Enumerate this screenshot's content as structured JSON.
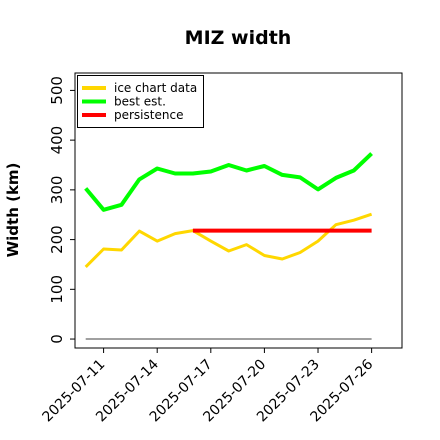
{
  "chart_data": {
    "type": "line",
    "title": "MIZ width",
    "xlabel": "",
    "ylabel": "Width (km)",
    "x": [
      "2025-07-10",
      "2025-07-11",
      "2025-07-12",
      "2025-07-13",
      "2025-07-14",
      "2025-07-15",
      "2025-07-16",
      "2025-07-17",
      "2025-07-18",
      "2025-07-19",
      "2025-07-20",
      "2025-07-21",
      "2025-07-22",
      "2025-07-23",
      "2025-07-24",
      "2025-07-25",
      "2025-07-26"
    ],
    "xticks": [
      "2025-07-11",
      "2025-07-14",
      "2025-07-17",
      "2025-07-20",
      "2025-07-23",
      "2025-07-26"
    ],
    "yticks": [
      0,
      100,
      200,
      300,
      400,
      500
    ],
    "ylim": [
      -18,
      535
    ],
    "xlim": [
      "2025-07-09.4",
      "2025-07-27.7"
    ],
    "grid": false,
    "legend_position": "top-left",
    "series": [
      {
        "name": "ice chart data",
        "color": "#FFD700",
        "x": [
          "2025-07-10",
          "2025-07-11",
          "2025-07-12",
          "2025-07-13",
          "2025-07-14",
          "2025-07-15",
          "2025-07-16",
          "2025-07-17",
          "2025-07-18",
          "2025-07-19",
          "2025-07-20",
          "2025-07-21",
          "2025-07-22",
          "2025-07-23",
          "2025-07-24",
          "2025-07-25",
          "2025-07-26"
        ],
        "values": [
          145,
          181,
          179,
          217,
          197,
          212,
          218,
          197,
          177,
          190,
          168,
          161,
          174,
          197,
          230,
          239,
          251
        ]
      },
      {
        "name": "best est.",
        "color": "#00FF00",
        "x": [
          "2025-07-10",
          "2025-07-11",
          "2025-07-12",
          "2025-07-13",
          "2025-07-14",
          "2025-07-15",
          "2025-07-16",
          "2025-07-17",
          "2025-07-18",
          "2025-07-19",
          "2025-07-20",
          "2025-07-21",
          "2025-07-22",
          "2025-07-23",
          "2025-07-24",
          "2025-07-25",
          "2025-07-26"
        ],
        "values": [
          303,
          260,
          270,
          321,
          343,
          333,
          333,
          337,
          350,
          339,
          348,
          330,
          325,
          301,
          324,
          339,
          373
        ]
      },
      {
        "name": "persistence",
        "color": "#FF0000",
        "x": [
          "2025-07-16",
          "2025-07-26"
        ],
        "values": [
          218,
          218
        ]
      },
      {
        "name": "",
        "color": "#808080",
        "x": [
          "2025-07-10",
          "2025-07-26"
        ],
        "values": [
          0,
          0
        ]
      }
    ]
  }
}
